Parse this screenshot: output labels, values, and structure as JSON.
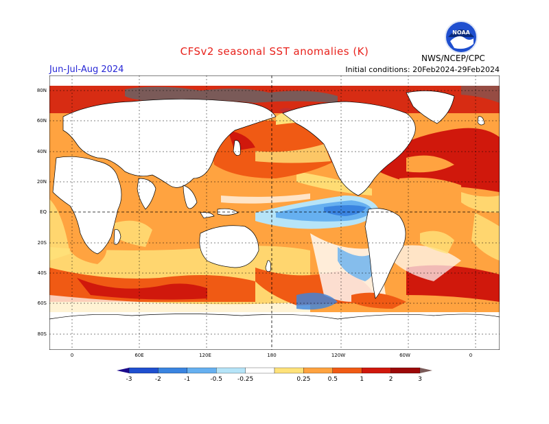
{
  "header": {
    "title": "CFSv2 seasonal SST anomalies (K)",
    "season": "Jun-Jul-Aug 2024",
    "initial_conditions": "Initial conditions: 20Feb2024-29Feb2024",
    "agency": "NWS/NCEP/CPC",
    "logo_text": "NOAA"
  },
  "map": {
    "lat_labels": [
      "80N",
      "60N",
      "40N",
      "20N",
      "EQ",
      "20S",
      "40S",
      "60S",
      "80S"
    ],
    "lon_labels": [
      "0",
      "60E",
      "120E",
      "180",
      "120W",
      "60W",
      "0"
    ]
  },
  "colorbar": {
    "labels": [
      "-3",
      "-2",
      "-1",
      "-0.5",
      "-0.25",
      "0.25",
      "0.5",
      "1",
      "2",
      "3"
    ],
    "colors": [
      "#1c0a8c",
      "#1f4fcf",
      "#3a84e0",
      "#66b0f0",
      "#b6e4f8",
      "#ffffff",
      "#ffe27a",
      "#ffa340",
      "#f05a14",
      "#d0180c",
      "#9c0808",
      "#7a5a58"
    ]
  },
  "palette": {
    "ocean_warm1": "#ffe27a",
    "ocean_warm2": "#ffa340",
    "ocean_warm3": "#f05a14",
    "ocean_warm4": "#d0180c",
    "ocean_warm5": "#9c0808",
    "ocean_cold1": "#b6e4f8",
    "ocean_cold2": "#66b0f0",
    "ocean_cold3": "#3a84e0",
    "extreme": "#7a5a58"
  }
}
